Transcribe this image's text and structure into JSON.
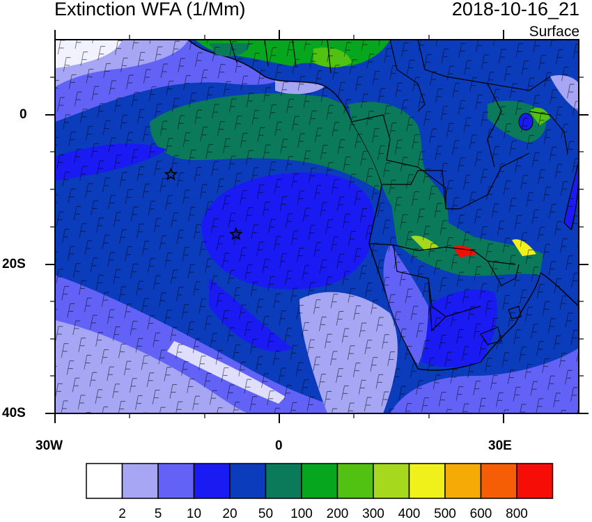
{
  "title": "Extinction WFA (1/Mm)",
  "timestamp": "2018-10-16_21",
  "level": "Surface",
  "axes": {
    "x_ticks": [
      "30W",
      "0",
      "30E"
    ],
    "y_ticks": [
      "0",
      "20S",
      "40S"
    ]
  },
  "colorbar": {
    "colors": [
      "#ffffff",
      "#a6a6f4",
      "#6262f6",
      "#1a1af2",
      "#0a3cbb",
      "#0a7a5a",
      "#06a61e",
      "#52c212",
      "#a6d81e",
      "#f0f01a",
      "#f6aa06",
      "#f65e06",
      "#f60e06"
    ],
    "labels": [
      "2",
      "5",
      "10",
      "20",
      "50",
      "100",
      "200",
      "300",
      "400",
      "500",
      "600",
      "800"
    ]
  },
  "markers": [
    {
      "name": "star",
      "lon": -14.5,
      "lat": -8
    },
    {
      "name": "star",
      "lon": -5.8,
      "lat": -16
    }
  ]
}
